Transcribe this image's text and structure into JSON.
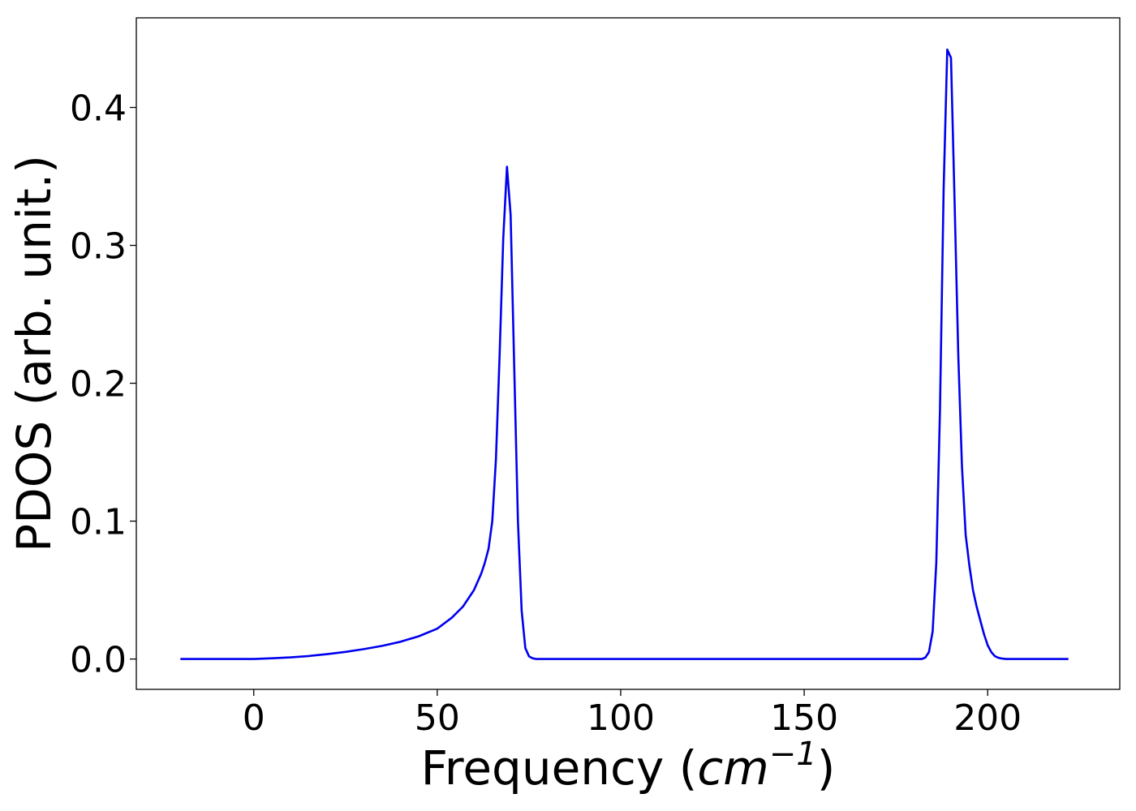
{
  "chart_data": {
    "type": "line",
    "xlabel": "Frequency (cm^-1)",
    "xlabel_parts": {
      "prefix": "Frequency (",
      "base": "cm",
      "exponent": "−1",
      "suffix": ")"
    },
    "ylabel": "PDOS (arb. unit.)",
    "xlim": [
      -32,
      236
    ],
    "ylim": [
      -0.022,
      0.465
    ],
    "xticks": [
      0,
      50,
      100,
      150,
      200
    ],
    "xtick_labels": [
      "0",
      "50",
      "100",
      "150",
      "200"
    ],
    "yticks": [
      0.0,
      0.1,
      0.2,
      0.3,
      0.4
    ],
    "ytick_labels": [
      "0.0",
      "0.1",
      "0.2",
      "0.3",
      "0.4"
    ],
    "grid": false,
    "series": [
      {
        "color": "#0000ee",
        "x": [
          -20,
          0,
          5,
          10,
          15,
          20,
          25,
          30,
          35,
          40,
          45,
          50,
          54,
          57,
          60,
          62,
          63,
          64,
          65,
          66,
          67,
          68,
          69,
          70,
          71,
          72,
          73,
          74,
          75,
          76,
          77,
          78,
          80,
          100,
          150,
          180,
          182,
          183,
          184,
          185,
          186,
          187,
          188,
          189,
          190,
          191,
          192,
          193,
          194,
          195,
          196,
          197,
          198,
          199,
          200,
          201,
          202,
          203,
          204,
          205,
          206,
          207,
          210,
          222
        ],
        "y": [
          0,
          0,
          0.0005,
          0.0012,
          0.0022,
          0.0035,
          0.0052,
          0.0072,
          0.0095,
          0.0125,
          0.0165,
          0.022,
          0.03,
          0.038,
          0.05,
          0.062,
          0.07,
          0.08,
          0.1,
          0.145,
          0.22,
          0.305,
          0.357,
          0.322,
          0.21,
          0.1,
          0.035,
          0.008,
          0.002,
          0.0005,
          0,
          0,
          0,
          0,
          0,
          0,
          0,
          0.001,
          0.005,
          0.02,
          0.07,
          0.18,
          0.34,
          0.442,
          0.436,
          0.33,
          0.22,
          0.14,
          0.09,
          0.068,
          0.05,
          0.038,
          0.028,
          0.018,
          0.01,
          0.005,
          0.002,
          0.0008,
          0.0003,
          0,
          0,
          0,
          0,
          0
        ]
      }
    ]
  }
}
